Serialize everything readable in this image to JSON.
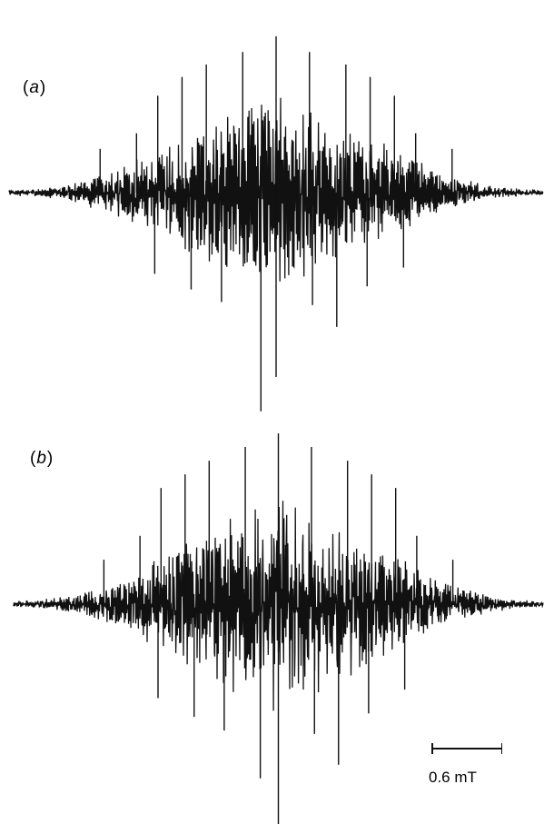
{
  "chart_data": [
    {
      "type": "line",
      "panel_label": "a",
      "description_kind": "EPR derivative spectrum",
      "series": [
        {
          "x": [
            -4.4,
            -4.0,
            -3.6,
            -3.2,
            -2.8,
            -2.4,
            -2.0,
            -1.6,
            -1.2,
            -0.8,
            -0.4,
            0.0,
            0.4,
            0.8,
            1.2,
            1.6,
            2.0,
            2.4,
            2.8,
            3.2,
            3.6,
            4.0,
            4.4
          ],
          "envelope": [
            0.02,
            0.03,
            0.06,
            0.12,
            0.2,
            0.3,
            0.42,
            0.55,
            0.68,
            0.8,
            0.9,
            1.0,
            0.9,
            0.8,
            0.68,
            0.55,
            0.42,
            0.3,
            0.2,
            0.12,
            0.06,
            0.03,
            0.02
          ]
        }
      ],
      "peaks": [
        {
          "x": -2.9,
          "y": 0.28
        },
        {
          "x": -2.3,
          "y": 0.38
        },
        {
          "x": -1.95,
          "y": 0.62
        },
        {
          "x": -1.55,
          "y": 0.74
        },
        {
          "x": -1.15,
          "y": 0.82
        },
        {
          "x": -0.55,
          "y": 0.9
        },
        {
          "x": 0.0,
          "y": 1.0
        },
        {
          "x": 0.55,
          "y": 0.9
        },
        {
          "x": 1.15,
          "y": 0.82
        },
        {
          "x": 1.55,
          "y": 0.74
        },
        {
          "x": 1.95,
          "y": 0.62
        },
        {
          "x": 2.3,
          "y": 0.38
        },
        {
          "x": 2.9,
          "y": 0.28
        }
      ],
      "troughs": [
        {
          "x": -2.0,
          "y": -0.52
        },
        {
          "x": -1.4,
          "y": -0.62
        },
        {
          "x": -0.9,
          "y": -0.7
        },
        {
          "x": -0.25,
          "y": -1.4
        },
        {
          "x": 0.0,
          "y": -1.18
        },
        {
          "x": 0.6,
          "y": -0.72
        },
        {
          "x": 1.0,
          "y": -0.86
        },
        {
          "x": 1.5,
          "y": -0.6
        },
        {
          "x": 2.1,
          "y": -0.48
        }
      ],
      "grid": false
    },
    {
      "type": "line",
      "panel_label": "b",
      "description_kind": "EPR derivative spectrum (simulation)",
      "series": [
        {
          "x": [
            -4.4,
            -4.0,
            -3.6,
            -3.2,
            -2.8,
            -2.4,
            -2.0,
            -1.6,
            -1.2,
            -0.8,
            -0.4,
            0.0,
            0.4,
            0.8,
            1.2,
            1.6,
            2.0,
            2.4,
            2.8,
            3.2,
            3.6,
            4.0,
            4.4
          ],
          "envelope": [
            0.02,
            0.03,
            0.06,
            0.12,
            0.2,
            0.3,
            0.42,
            0.55,
            0.68,
            0.8,
            0.9,
            1.0,
            0.9,
            0.8,
            0.68,
            0.55,
            0.42,
            0.3,
            0.2,
            0.12,
            0.06,
            0.03,
            0.02
          ]
        }
      ],
      "peaks": [
        {
          "x": -2.9,
          "y": 0.26
        },
        {
          "x": -2.3,
          "y": 0.4
        },
        {
          "x": -1.95,
          "y": 0.68
        },
        {
          "x": -1.55,
          "y": 0.76
        },
        {
          "x": -1.15,
          "y": 0.84
        },
        {
          "x": -0.55,
          "y": 0.92
        },
        {
          "x": 0.0,
          "y": 1.0
        },
        {
          "x": 0.55,
          "y": 0.92
        },
        {
          "x": 1.15,
          "y": 0.84
        },
        {
          "x": 1.55,
          "y": 0.76
        },
        {
          "x": 1.95,
          "y": 0.68
        },
        {
          "x": 2.3,
          "y": 0.4
        },
        {
          "x": 2.9,
          "y": 0.26
        }
      ],
      "troughs": [
        {
          "x": -2.0,
          "y": -0.55
        },
        {
          "x": -1.4,
          "y": -0.66
        },
        {
          "x": -0.9,
          "y": -0.74
        },
        {
          "x": -0.3,
          "y": -1.02
        },
        {
          "x": 0.0,
          "y": -1.5
        },
        {
          "x": 0.6,
          "y": -0.76
        },
        {
          "x": 1.0,
          "y": -0.94
        },
        {
          "x": 1.5,
          "y": -0.64
        },
        {
          "x": 2.1,
          "y": -0.5
        }
      ],
      "grid": false
    }
  ],
  "labels": {
    "panel_a": "a",
    "panel_b": "b",
    "scale_bar_text": "0.6 mT"
  },
  "scale_bar_value_mT": 0.6,
  "colors": {
    "trace": "#111111",
    "background": "#ffffff"
  }
}
